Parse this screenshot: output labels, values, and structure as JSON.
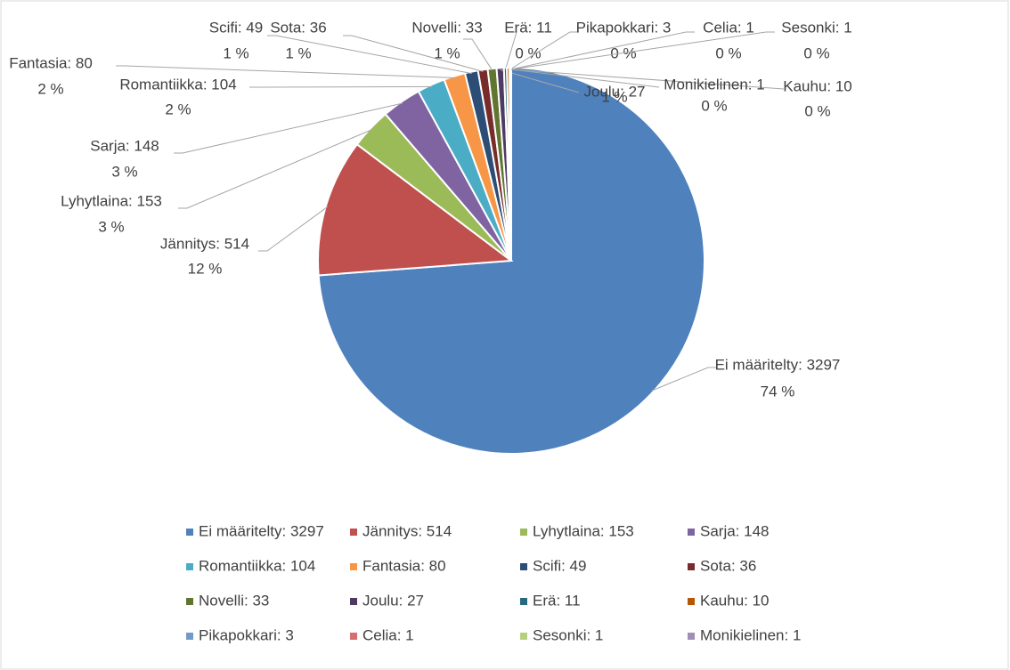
{
  "chart_data": {
    "type": "pie",
    "categories": [
      "Ei määritelty: 3297",
      "Jännitys: 514",
      "Lyhytlaina: 153",
      "Sarja: 148",
      "Romantiikka: 104",
      "Fantasia: 80",
      "Scifi: 49",
      "Sota: 36",
      "Novelli: 33",
      "Joulu: 27",
      "Erä: 11",
      "Kauhu: 10",
      "Pikapokkari: 3",
      "Celia: 1",
      "Sesonki: 1",
      "Monikielinen: 1"
    ],
    "values": [
      3297,
      514,
      153,
      148,
      104,
      80,
      49,
      36,
      33,
      27,
      11,
      10,
      3,
      1,
      1,
      1
    ],
    "percents": [
      74,
      12,
      3,
      3,
      2,
      2,
      1,
      1,
      1,
      1,
      0,
      0,
      0,
      0,
      0,
      0
    ],
    "percent_labels": [
      "74 %",
      "12 %",
      "3 %",
      "3 %",
      "2 %",
      "2 %",
      "1 %",
      "1 %",
      "1 %",
      "1 %",
      "0 %",
      "0 %",
      "0 %",
      "0 %",
      "0 %",
      "0 %"
    ],
    "colors": [
      "#4f81bd",
      "#c0504d",
      "#9bbb59",
      "#8064a2",
      "#4bacc6",
      "#f79646",
      "#2c4d75",
      "#772c2a",
      "#5f7530",
      "#4d3b62",
      "#276a7c",
      "#b65708",
      "#729aca",
      "#d4706d",
      "#b5cf7f",
      "#a18fb9"
    ],
    "legend": "bottom"
  }
}
